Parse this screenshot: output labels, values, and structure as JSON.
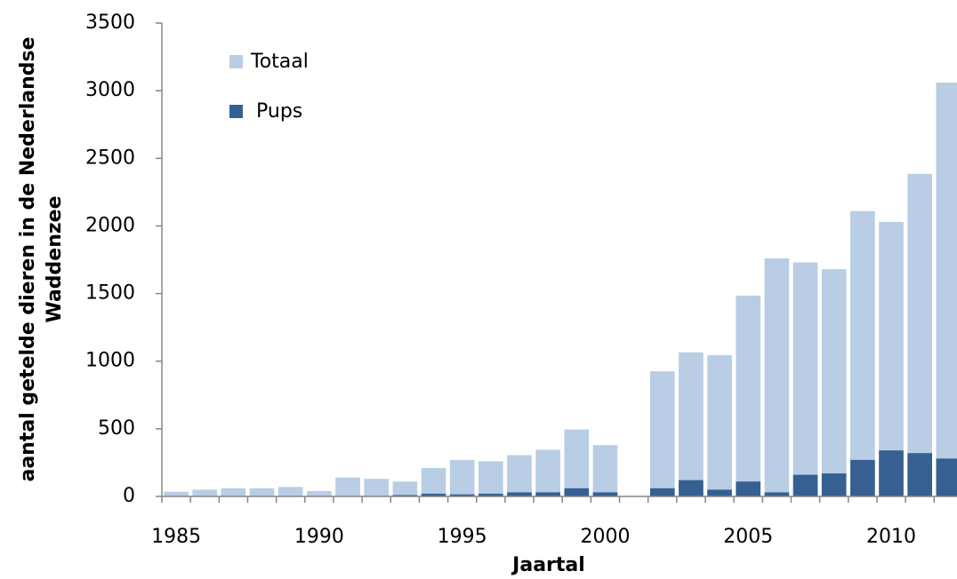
{
  "chart_data": {
    "type": "bar",
    "x_label": "Jaartal",
    "y_label": [
      "aantal getelde dieren in de Nederlandse",
      "Waddenzee"
    ],
    "x": [
      1985,
      1986,
      1987,
      1988,
      1989,
      1990,
      1991,
      1992,
      1993,
      1994,
      1995,
      1996,
      1997,
      1998,
      1999,
      2000,
      2001,
      2002,
      2003,
      2004,
      2005,
      2006,
      2007,
      2008,
      2009,
      2010,
      2011,
      2012
    ],
    "series": [
      {
        "name": "Totaal",
        "color": "#b9cde5",
        "values": [
          35,
          50,
          60,
          60,
          70,
          40,
          140,
          130,
          110,
          210,
          270,
          260,
          305,
          345,
          495,
          380,
          null,
          925,
          1065,
          1045,
          1485,
          1760,
          1730,
          1680,
          2110,
          2030,
          2385,
          3060
        ]
      },
      {
        "name": "Pups",
        "color": "#376092",
        "values": [
          null,
          null,
          null,
          null,
          null,
          null,
          null,
          null,
          10,
          20,
          15,
          20,
          30,
          30,
          60,
          30,
          null,
          60,
          120,
          50,
          110,
          30,
          160,
          170,
          270,
          340,
          320,
          280
        ]
      }
    ],
    "xlim": [
      1984.5,
      2012.3
    ],
    "xticks": [
      1985,
      1990,
      1995,
      2000,
      2005,
      2010
    ],
    "ylim": [
      0,
      3500
    ],
    "yticks": [
      0,
      500,
      1000,
      1500,
      2000,
      2500,
      3000,
      3500
    ],
    "grid": false,
    "legend": "top-left"
  }
}
